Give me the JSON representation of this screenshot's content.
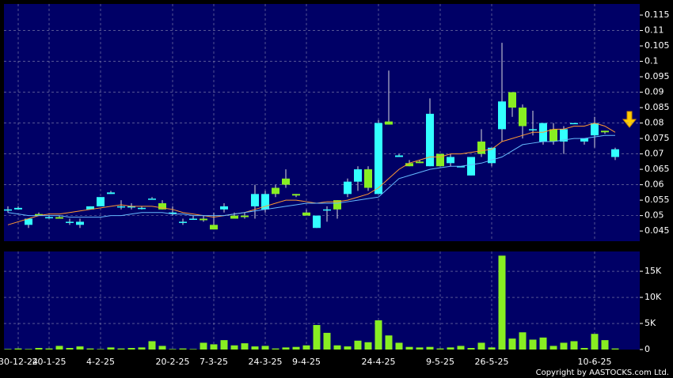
{
  "chart_data": {
    "type": "candlestick",
    "categories": [
      null,
      "30-12-24",
      null,
      null,
      "20-1-25",
      null,
      null,
      null,
      null,
      "4-2-25",
      null,
      null,
      null,
      null,
      null,
      null,
      "20-2-25",
      null,
      null,
      null,
      "7-3-25",
      null,
      null,
      null,
      null,
      "24-3-25",
      null,
      null,
      null,
      "9-4-25",
      null,
      null,
      null,
      null,
      null,
      null,
      "24-4-25",
      null,
      null,
      null,
      null,
      null,
      "9-5-25",
      null,
      null,
      null,
      null,
      "26-5-25",
      null,
      null,
      null,
      null,
      null,
      null,
      null,
      null,
      null,
      "10-6-25",
      null,
      null
    ],
    "open": [
      0.052,
      0.052,
      0.047,
      0.0505,
      0.0495,
      0.0495,
      0.048,
      0.047,
      0.052,
      0.053,
      0.057,
      0.053,
      0.053,
      0.0525,
      0.0555,
      0.054,
      0.051,
      0.048,
      0.049,
      0.049,
      0.047,
      0.052,
      0.05,
      0.05,
      0.053,
      0.052,
      0.059,
      0.062,
      0.057,
      0.051,
      0.046,
      0.052,
      0.055,
      0.057,
      0.061,
      0.065,
      0.057,
      0.0805,
      0.069,
      0.067,
      0.0675,
      0.066,
      0.07,
      0.067,
      0.066,
      0.063,
      0.074,
      0.067,
      0.078,
      0.09,
      0.085,
      0.078,
      0.074,
      0.078,
      0.074,
      0.08,
      0.074,
      0.076,
      0.0775,
      0.069
    ],
    "high": [
      0.053,
      0.053,
      0.049,
      0.051,
      0.05,
      0.05,
      0.049,
      0.049,
      0.053,
      0.056,
      0.058,
      0.055,
      0.054,
      0.053,
      0.056,
      0.055,
      0.053,
      0.049,
      0.05,
      0.05,
      0.051,
      0.054,
      0.051,
      0.051,
      0.06,
      0.058,
      0.06,
      0.065,
      0.057,
      0.052,
      0.05,
      0.053,
      0.055,
      0.062,
      0.066,
      0.066,
      0.081,
      0.097,
      0.07,
      0.068,
      0.068,
      0.088,
      0.07,
      0.07,
      0.066,
      0.069,
      0.078,
      0.072,
      0.106,
      0.09,
      0.086,
      0.084,
      0.08,
      0.08,
      0.079,
      0.08,
      0.075,
      0.082,
      0.0775,
      0.072
    ],
    "low": [
      0.051,
      0.052,
      0.046,
      0.05,
      0.049,
      0.049,
      0.047,
      0.046,
      0.052,
      0.053,
      0.057,
      0.052,
      0.052,
      0.052,
      0.0555,
      0.052,
      0.05,
      0.047,
      0.049,
      0.048,
      0.0455,
      0.051,
      0.049,
      0.049,
      0.049,
      0.051,
      0.056,
      0.059,
      0.056,
      0.05,
      0.046,
      0.048,
      0.049,
      0.056,
      0.058,
      0.058,
      0.057,
      0.0795,
      0.069,
      0.066,
      0.067,
      0.066,
      0.066,
      0.066,
      0.066,
      0.063,
      0.069,
      0.066,
      0.074,
      0.082,
      0.075,
      0.076,
      0.073,
      0.073,
      0.07,
      0.08,
      0.073,
      0.072,
      0.0765,
      0.068
    ],
    "close": [
      0.052,
      0.0525,
      0.049,
      0.05,
      0.0495,
      0.049,
      0.048,
      0.048,
      0.053,
      0.056,
      0.0575,
      0.053,
      0.053,
      0.0525,
      0.0555,
      0.052,
      0.051,
      0.048,
      0.049,
      0.0485,
      0.0455,
      0.053,
      0.049,
      0.0495,
      0.057,
      0.057,
      0.057,
      0.06,
      0.0565,
      0.05,
      0.05,
      0.052,
      0.052,
      0.061,
      0.065,
      0.059,
      0.08,
      0.0795,
      0.0695,
      0.066,
      0.067,
      0.083,
      0.066,
      0.069,
      0.066,
      0.069,
      0.07,
      0.072,
      0.087,
      0.085,
      0.079,
      0.078,
      0.08,
      0.074,
      0.078,
      0.08,
      0.075,
      0.08,
      0.077,
      0.0715
    ],
    "up_color": "#33ffff",
    "down_color": "#88ee22",
    "ma": [
      {
        "color": "#ff9933",
        "values": [
          0.047,
          0.048,
          0.049,
          0.05,
          0.0505,
          0.0505,
          0.051,
          0.0515,
          0.052,
          0.0525,
          0.053,
          0.0535,
          0.053,
          0.053,
          0.053,
          0.0525,
          0.052,
          0.051,
          0.0505,
          0.05,
          0.0495,
          0.05,
          0.0505,
          0.051,
          0.052,
          0.053,
          0.054,
          0.055,
          0.055,
          0.0545,
          0.054,
          0.0545,
          0.0545,
          0.055,
          0.056,
          0.057,
          0.059,
          0.062,
          0.065,
          0.067,
          0.068,
          0.069,
          0.069,
          0.07,
          0.07,
          0.0705,
          0.071,
          0.0715,
          0.074,
          0.075,
          0.076,
          0.077,
          0.077,
          0.078,
          0.078,
          0.079,
          0.079,
          0.08,
          0.079,
          0.077
        ]
      },
      {
        "color": "#66bbff",
        "values": [
          0.051,
          0.0505,
          0.05,
          0.05,
          0.05,
          0.05,
          0.0495,
          0.0495,
          0.0495,
          0.0495,
          0.05,
          0.05,
          0.0505,
          0.051,
          0.051,
          0.051,
          0.0505,
          0.0505,
          0.05,
          0.05,
          0.05,
          0.05,
          0.0505,
          0.051,
          0.0515,
          0.052,
          0.0525,
          0.053,
          0.0535,
          0.054,
          0.054,
          0.054,
          0.054,
          0.0545,
          0.055,
          0.0555,
          0.056,
          0.059,
          0.062,
          0.063,
          0.064,
          0.065,
          0.0655,
          0.066,
          0.066,
          0.0665,
          0.067,
          0.068,
          0.069,
          0.071,
          0.073,
          0.0735,
          0.074,
          0.074,
          0.0745,
          0.075,
          0.075,
          0.0755,
          0.076,
          0.076
        ]
      }
    ],
    "ylim": [
      0.0417,
      0.1186
    ],
    "yticks": [
      0.045,
      0.05,
      0.055,
      0.06,
      0.065,
      0.07,
      0.075,
      0.08,
      0.085,
      0.09,
      0.095,
      0.1,
      0.105,
      0.11,
      0.115
    ],
    "volume": {
      "color": "#88ee22",
      "values": [
        100,
        200,
        100,
        300,
        200,
        700,
        300,
        600,
        200,
        100,
        400,
        200,
        300,
        400,
        1600,
        700,
        100,
        200,
        100,
        1300,
        1000,
        1800,
        800,
        1200,
        600,
        700,
        200,
        400,
        500,
        800,
        4700,
        3200,
        800,
        600,
        1700,
        1400,
        5600,
        2700,
        1300,
        500,
        400,
        500,
        200,
        400,
        700,
        300,
        1300,
        400,
        18000,
        2100,
        3300,
        1900,
        2300,
        700,
        1300,
        1600,
        300,
        3000,
        1800,
        200
      ],
      "ylim": [
        0,
        18800
      ],
      "yticks": [
        0,
        {
          "value": 5000,
          "label": "5K"
        },
        {
          "value": 10000,
          "label": "10K"
        },
        {
          "value": 15000,
          "label": "15K"
        }
      ]
    },
    "grid": true,
    "footer": "Copyright by AASTOCKS.com Ltd."
  }
}
